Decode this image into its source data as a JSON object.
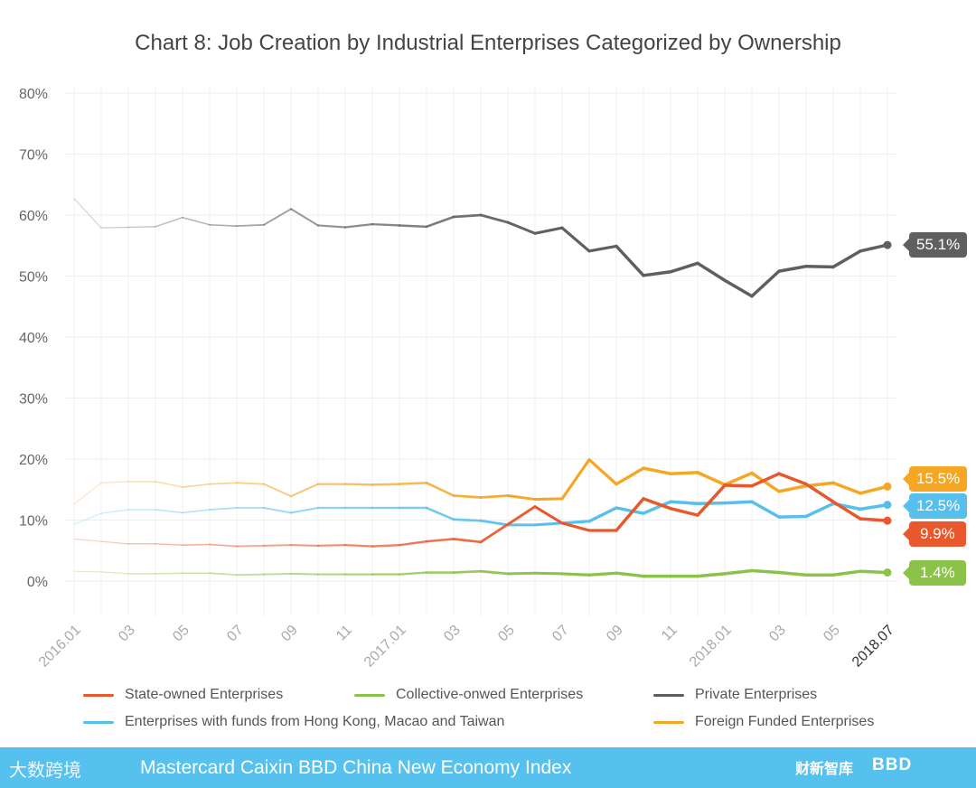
{
  "chart_data": {
    "type": "line",
    "title": "Chart 8: Job Creation by Industrial Enterprises Categorized by Ownership",
    "xlabel": "",
    "ylabel": "",
    "ylim": [
      0,
      80
    ],
    "yticks": [
      "0%",
      "10%",
      "20%",
      "30%",
      "40%",
      "50%",
      "60%",
      "70%",
      "80%"
    ],
    "grid": true,
    "legend_position": "bottom",
    "x": [
      "2016.01",
      "2016.02",
      "2016.03",
      "2016.04",
      "2016.05",
      "2016.06",
      "2016.07",
      "2016.08",
      "2016.09",
      "2016.10",
      "2016.11",
      "2016.12",
      "2017.01",
      "2017.02",
      "2017.03",
      "2017.04",
      "2017.05",
      "2017.06",
      "2017.07",
      "2017.08",
      "2017.09",
      "2017.10",
      "2017.11",
      "2017.12",
      "2018.01",
      "2018.02",
      "2018.03",
      "2018.04",
      "2018.05",
      "2018.06",
      "2018.07"
    ],
    "xtick_labels": [
      {
        "index": 0,
        "label": "2016.01"
      },
      {
        "index": 2,
        "label": "03"
      },
      {
        "index": 4,
        "label": "05"
      },
      {
        "index": 6,
        "label": "07"
      },
      {
        "index": 8,
        "label": "09"
      },
      {
        "index": 10,
        "label": "11"
      },
      {
        "index": 12,
        "label": "2017.01"
      },
      {
        "index": 14,
        "label": "03"
      },
      {
        "index": 16,
        "label": "05"
      },
      {
        "index": 18,
        "label": "07"
      },
      {
        "index": 20,
        "label": "09"
      },
      {
        "index": 22,
        "label": "11"
      },
      {
        "index": 24,
        "label": "2018.01"
      },
      {
        "index": 26,
        "label": "03"
      },
      {
        "index": 28,
        "label": "05"
      },
      {
        "index": 30,
        "label": "2018.07"
      }
    ],
    "series": [
      {
        "name": "Private Enterprises",
        "color": "#5f5f5f",
        "end_label": "55.1%",
        "values": [
          62.7,
          57.9,
          58.0,
          58.1,
          59.6,
          58.4,
          58.2,
          58.4,
          61.0,
          58.3,
          58.0,
          58.5,
          58.3,
          58.1,
          59.7,
          60.0,
          58.8,
          57.0,
          57.9,
          54.1,
          54.9,
          50.1,
          50.7,
          52.1,
          49.3,
          46.7,
          50.8,
          51.6,
          51.5,
          54.1,
          55.1
        ]
      },
      {
        "name": "Foreign Funded Enterprises",
        "color": "#f5a623",
        "end_label": "15.5%",
        "values": [
          12.6,
          16.1,
          16.3,
          16.3,
          15.4,
          15.9,
          16.1,
          15.9,
          13.9,
          15.9,
          15.9,
          15.8,
          15.9,
          16.1,
          14.0,
          13.7,
          14.0,
          13.4,
          13.5,
          19.9,
          15.9,
          18.5,
          17.6,
          17.8,
          15.8,
          17.7,
          14.7,
          15.6,
          16.1,
          14.4,
          15.5
        ]
      },
      {
        "name": "Enterprises with funds from Hong Kong, Macao and Taiwan",
        "color": "#56bfec",
        "end_label": "12.5%",
        "values": [
          9.3,
          11.1,
          11.7,
          11.7,
          11.2,
          11.7,
          12.0,
          12.0,
          11.2,
          12.0,
          12.0,
          12.0,
          12.0,
          12.0,
          10.1,
          9.9,
          9.2,
          9.2,
          9.5,
          9.8,
          12.0,
          11.1,
          13.0,
          12.7,
          12.8,
          13.0,
          10.5,
          10.6,
          12.7,
          11.8,
          12.5
        ]
      },
      {
        "name": "State-owned Enterprises",
        "color": "#e8582c",
        "end_label": "9.9%",
        "values": [
          6.9,
          6.5,
          6.1,
          6.1,
          5.9,
          6.0,
          5.7,
          5.8,
          5.9,
          5.8,
          5.9,
          5.7,
          5.9,
          6.5,
          6.9,
          6.4,
          9.3,
          12.2,
          9.5,
          8.3,
          8.3,
          13.5,
          11.9,
          10.8,
          15.7,
          15.6,
          17.6,
          15.9,
          13.0,
          10.2,
          9.9
        ]
      },
      {
        "name": "Collective-onwed Enterprises",
        "color": "#8bc34a",
        "end_label": "1.4%",
        "values": [
          1.6,
          1.5,
          1.2,
          1.2,
          1.3,
          1.3,
          1.0,
          1.1,
          1.2,
          1.1,
          1.1,
          1.1,
          1.1,
          1.4,
          1.4,
          1.6,
          1.2,
          1.3,
          1.2,
          1.0,
          1.3,
          0.8,
          0.8,
          0.8,
          1.2,
          1.7,
          1.4,
          1.0,
          1.0,
          1.6,
          1.4
        ]
      }
    ]
  },
  "legend": [
    {
      "label": "State-owned Enterprises",
      "color": "#e8582c"
    },
    {
      "label": "Collective-onwed Enterprises",
      "color": "#8bc34a"
    },
    {
      "label": "Private Enterprises",
      "color": "#5f5f5f"
    },
    {
      "label": "Enterprises with funds from Hong Kong, Macao and Taiwan",
      "color": "#56bfec"
    },
    {
      "label": "Foreign Funded Enterprises",
      "color": "#f5a623"
    }
  ],
  "footer": {
    "logo_left": "大数跨境",
    "title": "Mastercard Caixin BBD China New Economy Index",
    "logo_caixin": "财新智库",
    "logo_bbd": "BBD",
    "background": "#56c1ee"
  }
}
